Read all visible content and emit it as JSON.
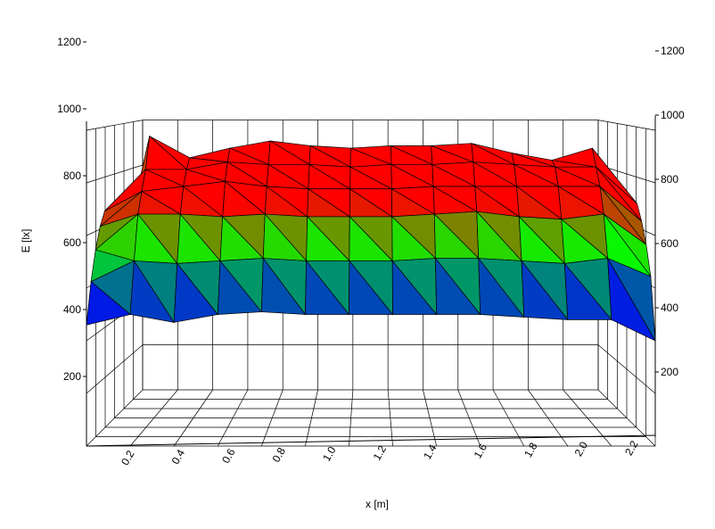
{
  "chart_data": {
    "type": "surface",
    "xlabel": "x [m]",
    "zlabel": "E [lx]",
    "x_ticks": [
      "0.2",
      "0.4",
      "0.6",
      "0.8",
      "1.0",
      "1.2",
      "1.4",
      "1.6",
      "1.8",
      "2.0",
      "2.2"
    ],
    "z_ticks_left": [
      "200",
      "400",
      "600",
      "800",
      "1000",
      "1200"
    ],
    "z_ticks_right": [
      "200",
      "400",
      "600",
      "800",
      "1000",
      "1200"
    ],
    "zlim": [
      0,
      1200
    ],
    "colormap": [
      "#0000ff",
      "#00ff00",
      "#ff0000"
    ],
    "grid": true,
    "surface_rows": [
      [
        400,
        1150,
        1060,
        1100,
        1130,
        1110,
        1100,
        1110,
        1110,
        1120,
        1080,
        1050,
        1100,
        390
      ],
      [
        850,
        1020,
        1020,
        1050,
        1040,
        1040,
        1030,
        1040,
        1040,
        1050,
        1040,
        1030,
        1030,
        880
      ],
      [
        800,
        940,
        960,
        980,
        960,
        950,
        950,
        950,
        960,
        960,
        960,
        960,
        960,
        820
      ],
      [
        720,
        860,
        860,
        850,
        860,
        850,
        850,
        850,
        860,
        870,
        850,
        840,
        860,
        740
      ],
      [
        610,
        690,
        680,
        690,
        700,
        690,
        690,
        690,
        700,
        700,
        690,
        680,
        700,
        630
      ],
      [
        460,
        500,
        470,
        500,
        510,
        500,
        500,
        500,
        500,
        500,
        490,
        480,
        480,
        400
      ]
    ]
  }
}
